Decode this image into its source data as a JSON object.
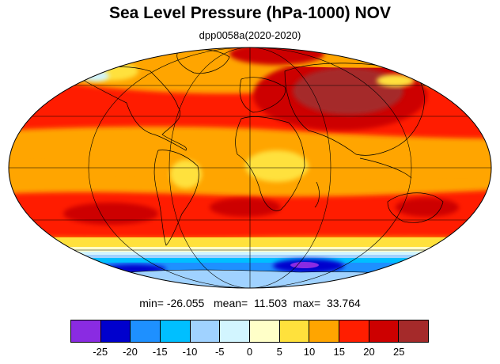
{
  "title": "Sea Level Pressure (hPa-1000) NOV",
  "subtitle": "dpp0058a(2020-2020)",
  "stats": {
    "min_label": "min=",
    "min": "-26.055",
    "mean_label": "mean=",
    "mean": "11.503",
    "max_label": "max=",
    "max": "33.764"
  },
  "colorbar": {
    "colors": [
      "#8a2be2",
      "#0000cd",
      "#1e90ff",
      "#00bfff",
      "#a0d2ff",
      "#d2f5ff",
      "#ffffc8",
      "#ffe13c",
      "#ffa500",
      "#ff1e00",
      "#cd0000",
      "#a52a2a"
    ],
    "labels": [
      "-25",
      "-20",
      "-15",
      "-10",
      "-5",
      "0",
      "5",
      "10",
      "15",
      "20",
      "25"
    ]
  },
  "map": {
    "projection": "mollweide",
    "ocean_background": "#ffa500",
    "land_line_color": "#000000"
  }
}
